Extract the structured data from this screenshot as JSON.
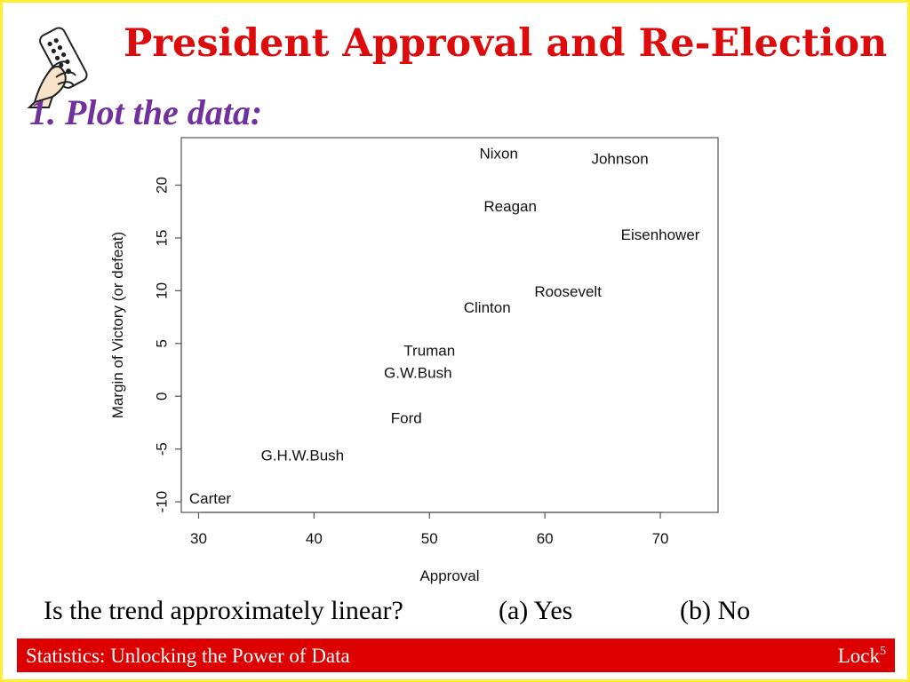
{
  "title": "President Approval and Re-Election",
  "subtitle": "1. Plot the data:",
  "question": {
    "text": "Is the trend approximately linear?",
    "option_a": "(a) Yes",
    "option_b": "(b)  No"
  },
  "footer": {
    "left": "Statistics: Unlocking the Power of Data",
    "right_main": "Lock",
    "right_sup": "5"
  },
  "colors": {
    "title": "#dd0b0b",
    "subtitle": "#7030a0",
    "footer_bg": "#dd0000",
    "border": "#ffee33"
  },
  "icons": {
    "clip_art": "hand-holding-remote-icon"
  },
  "chart_data": {
    "type": "scatter",
    "title": "",
    "xlabel": "Approval",
    "ylabel": "Margin of Victory (or defeat)",
    "xlim": [
      28.5,
      75
    ],
    "ylim": [
      -11,
      24.5
    ],
    "xticks": [
      30,
      40,
      50,
      60,
      70
    ],
    "yticks": [
      -10,
      -5,
      0,
      5,
      10,
      15,
      20
    ],
    "grid": false,
    "marker": "text-label",
    "points": [
      {
        "label": "Nixon",
        "x": 56,
        "y": 23
      },
      {
        "label": "Johnson",
        "x": 66.5,
        "y": 22.5
      },
      {
        "label": "Reagan",
        "x": 57,
        "y": 18
      },
      {
        "label": "Eisenhower",
        "x": 70,
        "y": 15.3
      },
      {
        "label": "Roosevelt",
        "x": 62,
        "y": 9.9
      },
      {
        "label": "Clinton",
        "x": 55,
        "y": 8.4
      },
      {
        "label": "Truman",
        "x": 50,
        "y": 4.3
      },
      {
        "label": "G.W.Bush",
        "x": 49,
        "y": 2.2
      },
      {
        "label": "Ford",
        "x": 48,
        "y": -2.1
      },
      {
        "label": "G.H.W.Bush",
        "x": 39,
        "y": -5.6
      },
      {
        "label": "Carter",
        "x": 31,
        "y": -9.7
      }
    ]
  }
}
